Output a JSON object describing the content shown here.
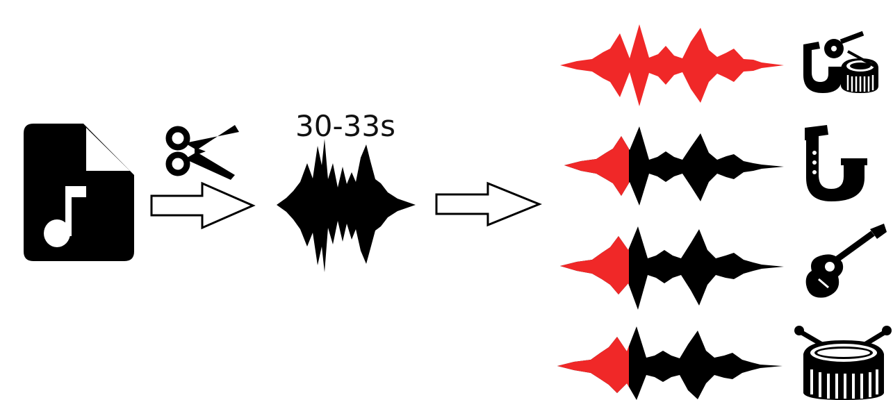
{
  "clip": {
    "label": "30-33s"
  },
  "colors": {
    "ink": "#000000",
    "highlight": "#f02828",
    "background": "#ffffff"
  },
  "steps": [
    {
      "name": "audio-file",
      "icon": "audio-file-icon"
    },
    {
      "name": "cut",
      "icon": "scissors-icon"
    },
    {
      "name": "clip",
      "icon": "waveform-icon"
    },
    {
      "name": "separated-tracks",
      "icon": "waveform-icon"
    }
  ],
  "tracks": [
    {
      "name": "mixture",
      "icon": "saxophone-guitar-drum-icon",
      "highlight_fraction": 1.0
    },
    {
      "name": "saxophone",
      "icon": "saxophone-icon",
      "highlight_fraction": 0.3
    },
    {
      "name": "guitar",
      "icon": "guitar-icon",
      "highlight_fraction": 0.3
    },
    {
      "name": "drum",
      "icon": "drum-icon",
      "highlight_fraction": 0.3
    }
  ]
}
